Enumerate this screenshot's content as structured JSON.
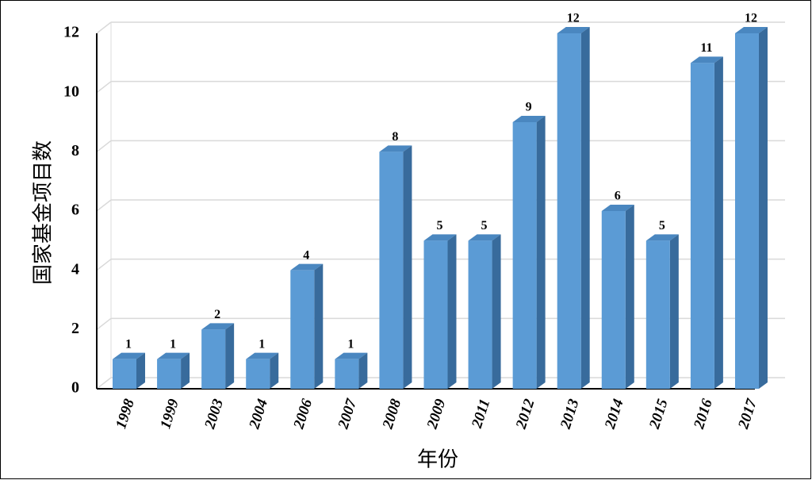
{
  "chart_data": {
    "type": "bar",
    "y_label": "国家基金项目数",
    "x_label": "年份",
    "categories": [
      "1998",
      "1999",
      "2003",
      "2004",
      "2006",
      "2007",
      "2008",
      "2009",
      "2011",
      "2012",
      "2013",
      "2014",
      "2015",
      "2016",
      "2017"
    ],
    "values": [
      1,
      1,
      2,
      1,
      4,
      1,
      8,
      5,
      5,
      9,
      12,
      6,
      5,
      11,
      12
    ],
    "color": "#5b9bd5",
    "ylim": [
      0,
      12
    ],
    "yticks": [
      0,
      2,
      4,
      6,
      8,
      10,
      12
    ],
    "grid": true
  }
}
